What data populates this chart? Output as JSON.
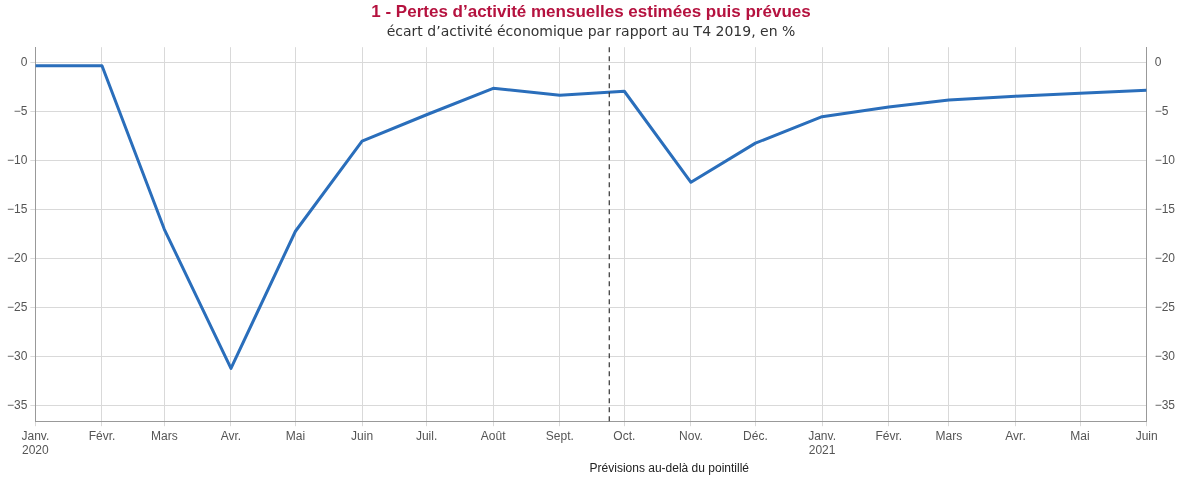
{
  "chart_data": {
    "type": "line",
    "title": "1 - Pertes d’activité mensuelles estimées puis prévues",
    "subtitle": "écart d’activité économique par rapport au T4 2019, en %",
    "x": [
      "2020-01",
      "2020-02",
      "2020-03",
      "2020-04",
      "2020-05",
      "2020-06",
      "2020-07",
      "2020-08",
      "2020-09",
      "2020-10",
      "2020-11",
      "2020-12",
      "2021-01",
      "2021-02",
      "2021-03",
      "2021-04",
      "2021-05",
      "2021-06"
    ],
    "series": [
      {
        "color": "#2a6ebb",
        "values": [
          -0.3,
          -0.3,
          -17.0,
          -31.2,
          -17.2,
          -8.0,
          -5.3,
          -2.6,
          -3.3,
          -2.9,
          -12.2,
          -8.2,
          -5.5,
          -4.5,
          -3.8,
          -3.4,
          -3.1,
          -2.8
        ]
      }
    ],
    "xlim": [
      "2020-01",
      "2021-06"
    ],
    "xticks": [
      {
        "value": "2020-01",
        "label": "Janv.\n2020"
      },
      {
        "value": "2020-02",
        "label": "Févr."
      },
      {
        "value": "2020-03",
        "label": "Mars"
      },
      {
        "value": "2020-04",
        "label": "Avr."
      },
      {
        "value": "2020-05",
        "label": "Mai"
      },
      {
        "value": "2020-06",
        "label": "Juin"
      },
      {
        "value": "2020-07",
        "label": "Juil."
      },
      {
        "value": "2020-08",
        "label": "Août"
      },
      {
        "value": "2020-09",
        "label": "Sept."
      },
      {
        "value": "2020-10",
        "label": "Oct."
      },
      {
        "value": "2020-11",
        "label": "Nov."
      },
      {
        "value": "2020-12",
        "label": "Déc."
      },
      {
        "value": "2021-01",
        "label": "Janv.\n2021"
      },
      {
        "value": "2021-02",
        "label": "Févr."
      },
      {
        "value": "2021-03",
        "label": "Mars"
      },
      {
        "value": "2021-04",
        "label": "Avr."
      },
      {
        "value": "2021-05",
        "label": "Mai"
      },
      {
        "value": "2021-06",
        "label": "Juin"
      }
    ],
    "ylim": [
      -36.6,
      1.6
    ],
    "yticks": [
      -35,
      -30,
      -25,
      -20,
      -15,
      -10,
      -5,
      0
    ],
    "y2lim": [
      -36.6,
      1.6
    ],
    "y2ticks": [
      -35,
      -30,
      -25,
      -20,
      -15,
      -10,
      -5,
      0
    ],
    "ref_lines": [
      {
        "axis": "x",
        "value": "2020-09-24",
        "color": "#333333",
        "line_style": "dashed"
      }
    ],
    "annotations": [
      "Prévisions au-delà du pointillé"
    ],
    "grid": true,
    "marker": "none",
    "line_style": "solid"
  }
}
